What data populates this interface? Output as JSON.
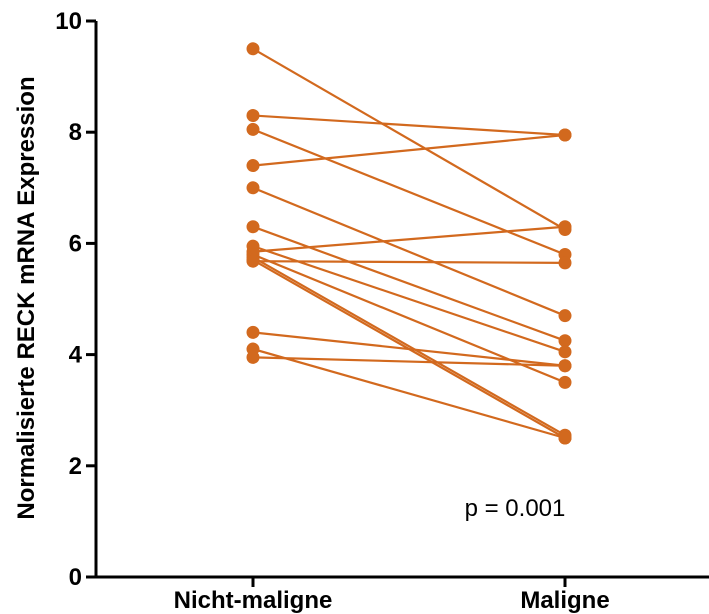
{
  "chart_data": {
    "type": "line",
    "categories": [
      "Nicht-maligne",
      "Maligne"
    ],
    "ylabel": "Normalisierte RECK mRNA Expression",
    "ylim": [
      0,
      10
    ],
    "yticks": [
      "0",
      "2",
      "4",
      "6",
      "8",
      "10"
    ],
    "annotation": "p = 0.001",
    "color": "#d2691e",
    "pairs": [
      [
        9.5,
        6.25
      ],
      [
        8.3,
        7.95
      ],
      [
        8.05,
        5.8
      ],
      [
        7.4,
        7.95
      ],
      [
        7.0,
        4.7
      ],
      [
        6.3,
        4.25
      ],
      [
        5.95,
        4.05
      ],
      [
        5.85,
        6.3
      ],
      [
        5.8,
        3.5
      ],
      [
        5.75,
        2.55
      ],
      [
        5.7,
        2.5
      ],
      [
        5.68,
        5.65
      ],
      [
        4.4,
        3.8
      ],
      [
        4.1,
        2.5
      ],
      [
        3.95,
        3.8
      ]
    ]
  }
}
